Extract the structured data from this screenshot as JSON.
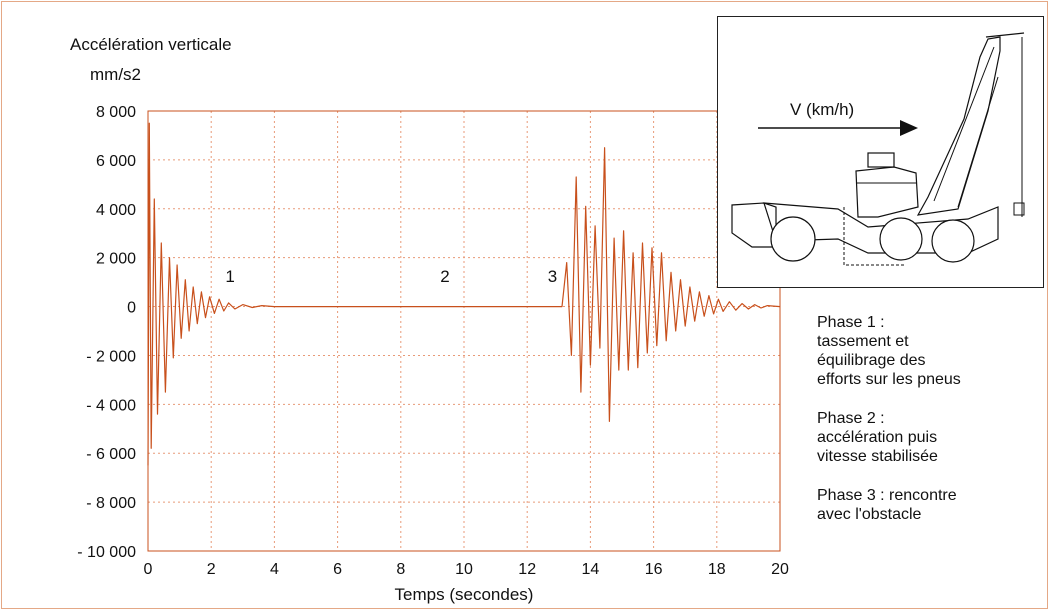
{
  "chart_data": {
    "type": "line",
    "ylabel": "Accélération verticale",
    "yunit": "mm/s2",
    "xlabel": "Temps (secondes)",
    "xlim": [
      0,
      20
    ],
    "ylim": [
      -10000,
      8000
    ],
    "grid": true,
    "line_color": "#c8501c",
    "grid_color": "#e89a78",
    "x_ticks": [
      "0",
      "2",
      "4",
      "6",
      "8",
      "10",
      "12",
      "14",
      "16",
      "18",
      "20"
    ],
    "y_ticks": [
      "8 000",
      "6 000",
      "4 000",
      "2 000",
      "0",
      "- 2 000",
      "- 4 000",
      "- 6 000",
      "- 8 000",
      "- 10 000"
    ],
    "annotations": [
      {
        "text": "1",
        "x": 2.6,
        "y": 1000
      },
      {
        "text": "2",
        "x": 9.4,
        "y": 1000
      },
      {
        "text": "3",
        "x": 12.8,
        "y": 1000
      }
    ],
    "series": [
      {
        "x": [
          0,
          0.04,
          0.1,
          0.2,
          0.3,
          0.42,
          0.55,
          0.68,
          0.8,
          0.92,
          1.05,
          1.18,
          1.3,
          1.43,
          1.56,
          1.69,
          1.82,
          1.95,
          2.1,
          2.25,
          2.4,
          2.55,
          2.75,
          3,
          3.3,
          3.6,
          4,
          13.1,
          13.25,
          13.4,
          13.55,
          13.7,
          13.85,
          14.0,
          14.15,
          14.3,
          14.45,
          14.6,
          14.75,
          14.9,
          15.05,
          15.2,
          15.35,
          15.5,
          15.65,
          15.8,
          15.95,
          16.1,
          16.25,
          16.4,
          16.55,
          16.7,
          16.85,
          17.0,
          17.15,
          17.3,
          17.45,
          17.6,
          17.75,
          17.9,
          18.05,
          18.2,
          18.4,
          18.6,
          18.8,
          19.0,
          19.2,
          19.4,
          19.6,
          20
        ],
        "y": [
          -6500,
          7500,
          -5800,
          4400,
          -4400,
          2600,
          -3500,
          2000,
          -2100,
          1700,
          -1300,
          1100,
          -1000,
          800,
          -700,
          600,
          -450,
          400,
          -280,
          300,
          -180,
          150,
          -100,
          80,
          -40,
          40,
          0,
          0,
          1800,
          -2000,
          5300,
          -3500,
          4100,
          -2400,
          3300,
          -1700,
          6500,
          -4700,
          2800,
          -2600,
          3100,
          -2600,
          2200,
          -2500,
          2600,
          -1900,
          2400,
          -1600,
          2200,
          -1400,
          1400,
          -1000,
          1100,
          -800,
          800,
          -600,
          600,
          -400,
          450,
          -300,
          300,
          -200,
          200,
          -150,
          120,
          -100,
          80,
          -60,
          40,
          0
        ]
      }
    ]
  },
  "inset": {
    "arrow_label": "V (km/h)"
  },
  "notes": [
    "Phase 1 :\ntassement et\néquilibrage des\nefforts sur les pneus",
    "Phase 2 :\naccélération puis\nvitesse stabilisée",
    "Phase 3 : rencontre\navec l'obstacle"
  ]
}
